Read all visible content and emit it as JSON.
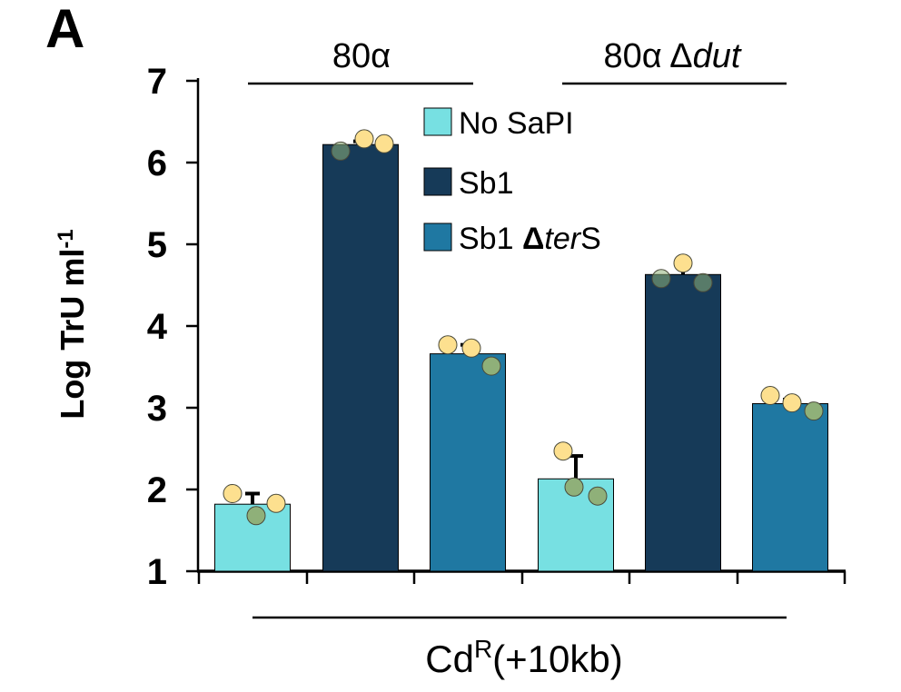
{
  "panel_label": "A",
  "groups": [
    {
      "label": "80α",
      "symbol": "",
      "suffix": ""
    },
    {
      "label": "80α ",
      "symbol": "Δ",
      "suffix": "dut"
    }
  ],
  "legend": [
    {
      "prefix": "No SaPI",
      "symbol": "",
      "italic": "",
      "suffix": "",
      "color": "#77e0e2"
    },
    {
      "prefix": "Sb1",
      "symbol": "",
      "italic": "",
      "suffix": "",
      "color": "#163a58"
    },
    {
      "prefix": "Sb1 ",
      "symbol": "Δ",
      "italic": "ter",
      "suffix": "S",
      "color": "#1f78a2"
    }
  ],
  "x_group_label": {
    "base": "Cd",
    "sup": "R",
    "rest": "(+10kb)"
  },
  "y_axis_label": {
    "base": "Log TrU ml",
    "sup": "-1"
  },
  "colors": {
    "no_sapi": "#77e0e2",
    "sb1": "#163a58",
    "sb1_ters": "#1f78a2",
    "point_light": "#fde08f",
    "point_dark": "#8fb079",
    "axis": "#000000"
  },
  "chart_data": {
    "type": "bar",
    "title": "",
    "xlabel": "Cd^R(+10kb)",
    "ylabel": "Log TrU ml-1",
    "ylim": [
      1,
      7
    ],
    "yticks": [
      1,
      2,
      3,
      4,
      5,
      6,
      7
    ],
    "grid": false,
    "legend_position": "top-center",
    "groups": [
      "80α",
      "80α Δdut"
    ],
    "series": [
      {
        "name": "No SaPI",
        "values": [
          1.82,
          2.13
        ],
        "errors": [
          0.13,
          0.28
        ],
        "points": [
          [
            1.95,
            1.68,
            1.83
          ],
          [
            2.47,
            2.03,
            1.92
          ]
        ]
      },
      {
        "name": "Sb1",
        "values": [
          6.22,
          4.63
        ],
        "errors": [
          0.04,
          0.1
        ],
        "points": [
          [
            6.14,
            6.29,
            6.23
          ],
          [
            4.58,
            4.77,
            4.53
          ]
        ]
      },
      {
        "name": "Sb1 ΔterS",
        "values": [
          3.66,
          3.05
        ],
        "errors": [
          0.11,
          0.05
        ],
        "points": [
          [
            3.77,
            3.73,
            3.51
          ],
          [
            3.15,
            3.06,
            2.96
          ]
        ]
      }
    ]
  }
}
